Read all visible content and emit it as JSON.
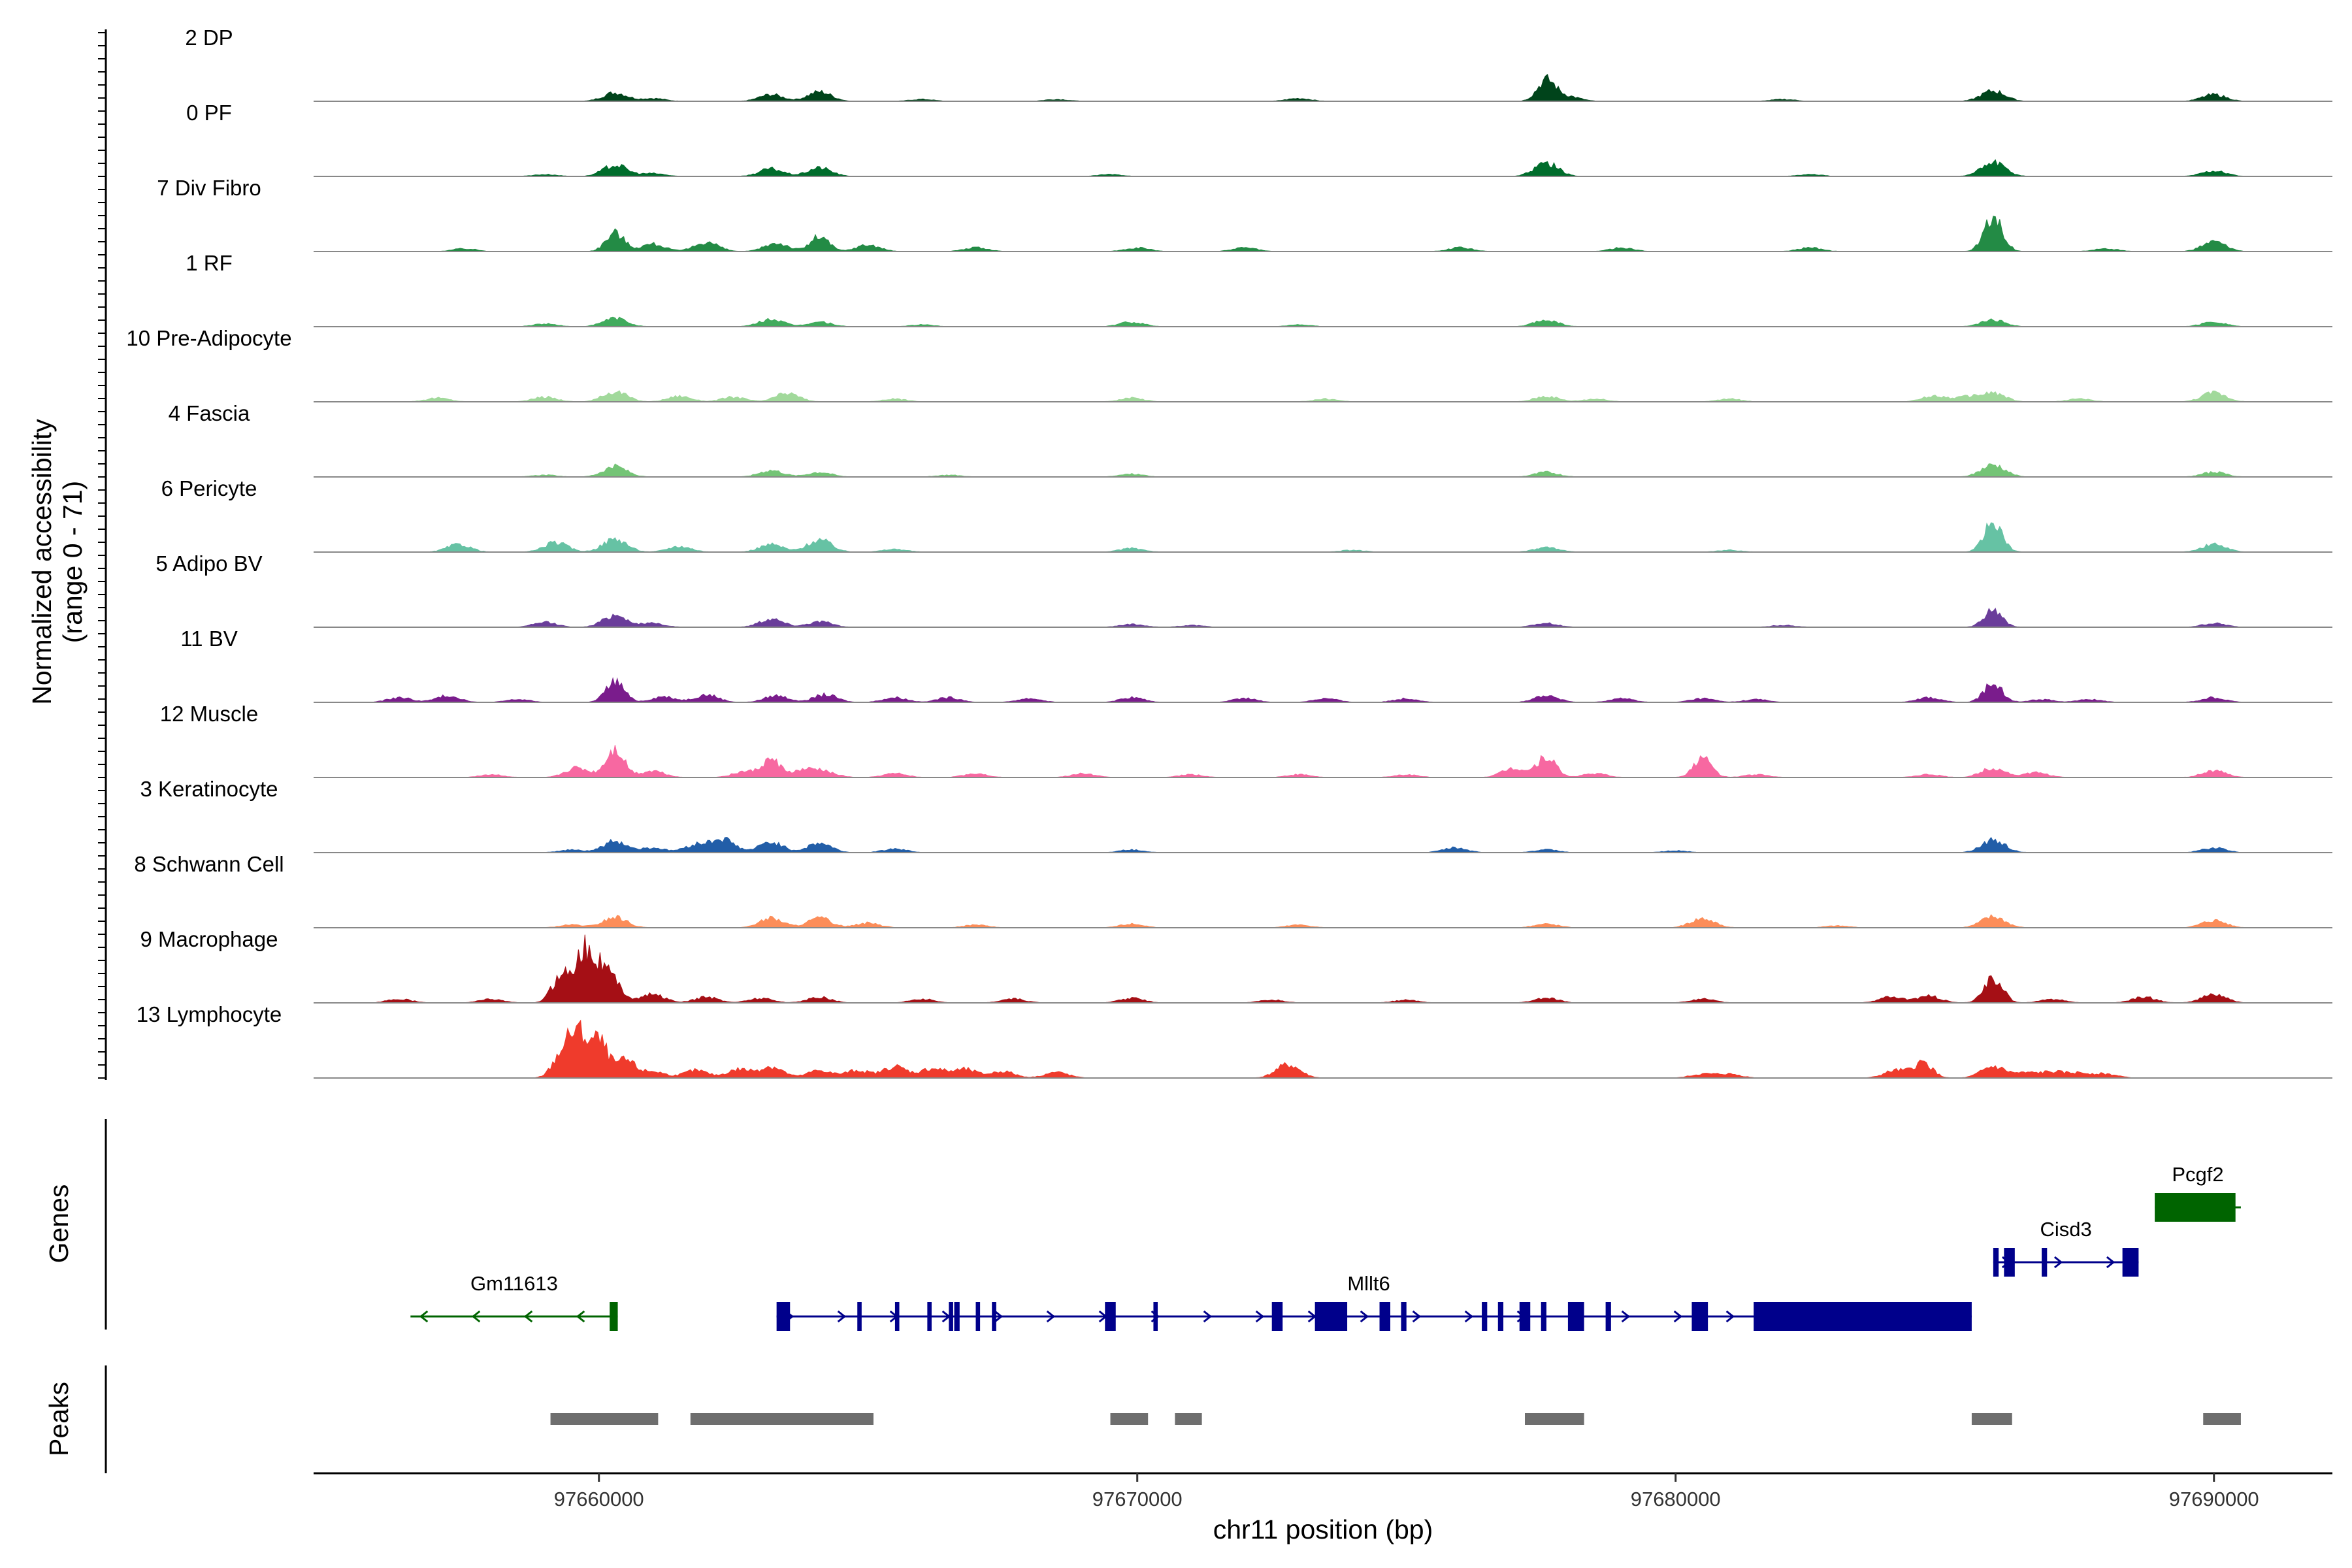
{
  "chart_data": {
    "type": "coverage",
    "y_axis_title_line1": "Normalized accessibility",
    "y_axis_title_line2": "(range 0 - 71)",
    "y_range": [
      0,
      71
    ],
    "x_axis_title": "chr11 position (bp)",
    "x_range": [
      97654700,
      97692200
    ],
    "x_ticks": [
      97660000,
      97670000,
      97680000,
      97690000
    ],
    "x_tick_labels": [
      "97660000",
      "97670000",
      "97680000",
      "97690000"
    ],
    "gene_track_title": "Genes",
    "peak_track_title": "Peaks",
    "tracks": [
      {
        "name": "2 DP",
        "color": "#00441b",
        "peaks": [
          [
            97660300,
            9
          ],
          [
            97663200,
            7
          ],
          [
            97664100,
            10
          ],
          [
            97677600,
            22
          ],
          [
            97678000,
            5
          ],
          [
            97685900,
            11
          ],
          [
            97690000,
            7
          ],
          [
            97661000,
            3
          ],
          [
            97668500,
            2
          ],
          [
            97673000,
            3
          ],
          [
            97682000,
            2
          ],
          [
            97666000,
            2
          ]
        ]
      },
      {
        "name": "0 PF",
        "color": "#006d2c",
        "peaks": [
          [
            97660300,
            12
          ],
          [
            97663200,
            8
          ],
          [
            97664100,
            9
          ],
          [
            97677600,
            14
          ],
          [
            97685900,
            15
          ],
          [
            97690000,
            6
          ],
          [
            97661000,
            3
          ],
          [
            97669500,
            2
          ],
          [
            97682500,
            2
          ],
          [
            97659000,
            2
          ]
        ]
      },
      {
        "name": "7 Div Fibro",
        "color": "#238b45",
        "peaks": [
          [
            97660300,
            20
          ],
          [
            97661000,
            8
          ],
          [
            97662000,
            10
          ],
          [
            97663300,
            9
          ],
          [
            97664100,
            16
          ],
          [
            97665000,
            7
          ],
          [
            97667000,
            4
          ],
          [
            97670000,
            4
          ],
          [
            97672000,
            4
          ],
          [
            97676000,
            4
          ],
          [
            97679000,
            4
          ],
          [
            97682500,
            4
          ],
          [
            97685900,
            38
          ],
          [
            97690000,
            10
          ],
          [
            97657500,
            3
          ],
          [
            97688000,
            3
          ]
        ]
      },
      {
        "name": "1 RF",
        "color": "#41ab5d",
        "peaks": [
          [
            97660300,
            9
          ],
          [
            97663200,
            8
          ],
          [
            97664100,
            5
          ],
          [
            97659000,
            3
          ],
          [
            97669900,
            5
          ],
          [
            97677600,
            7
          ],
          [
            97685900,
            7
          ],
          [
            97690000,
            5
          ],
          [
            97666000,
            2
          ],
          [
            97673000,
            2
          ]
        ]
      },
      {
        "name": "10 Pre-Adipocyte",
        "color": "#a1d99b",
        "peaks": [
          [
            97657000,
            4
          ],
          [
            97659000,
            5
          ],
          [
            97660300,
            11
          ],
          [
            97661500,
            6
          ],
          [
            97663500,
            9
          ],
          [
            97662500,
            5
          ],
          [
            97665500,
            3
          ],
          [
            97669900,
            4
          ],
          [
            97673500,
            3
          ],
          [
            97677600,
            6
          ],
          [
            97678500,
            3
          ],
          [
            97681000,
            3
          ],
          [
            97684800,
            6
          ],
          [
            97685400,
            5
          ],
          [
            97685900,
            9
          ],
          [
            97690000,
            10
          ],
          [
            97687500,
            3
          ]
        ]
      },
      {
        "name": "4 Fascia",
        "color": "#74c476",
        "peaks": [
          [
            97660300,
            11
          ],
          [
            97663200,
            7
          ],
          [
            97664100,
            5
          ],
          [
            97659000,
            2
          ],
          [
            97669900,
            3
          ],
          [
            97677600,
            5
          ],
          [
            97685900,
            13
          ],
          [
            97690000,
            5
          ],
          [
            97666500,
            2
          ]
        ]
      },
      {
        "name": "6 Pericyte",
        "color": "#66c2a4",
        "peaks": [
          [
            97657400,
            8
          ],
          [
            97659200,
            10
          ],
          [
            97660300,
            14
          ],
          [
            97661500,
            6
          ],
          [
            97663200,
            8
          ],
          [
            97664100,
            13
          ],
          [
            97665500,
            3
          ],
          [
            97669900,
            4
          ],
          [
            97677600,
            5
          ],
          [
            97685900,
            32
          ],
          [
            97690000,
            8
          ],
          [
            97674000,
            2
          ],
          [
            97681000,
            2
          ]
        ]
      },
      {
        "name": "5 Adipo BV",
        "color": "#6a3d9a",
        "peaks": [
          [
            97659000,
            5
          ],
          [
            97660300,
            13
          ],
          [
            97661000,
            4
          ],
          [
            97663200,
            9
          ],
          [
            97664100,
            6
          ],
          [
            97669900,
            3
          ],
          [
            97677600,
            4
          ],
          [
            97685900,
            18
          ],
          [
            97690000,
            4
          ],
          [
            97671000,
            2
          ],
          [
            97682000,
            2
          ]
        ]
      },
      {
        "name": "11 BV",
        "color": "#7a1c8c",
        "peaks": [
          [
            97656300,
            5
          ],
          [
            97657200,
            7
          ],
          [
            97658500,
            3
          ],
          [
            97660300,
            22
          ],
          [
            97661200,
            6
          ],
          [
            97662000,
            8
          ],
          [
            97663300,
            7
          ],
          [
            97664200,
            8
          ],
          [
            97665500,
            5
          ],
          [
            97666500,
            5
          ],
          [
            97668000,
            4
          ],
          [
            97669900,
            5
          ],
          [
            97672000,
            4
          ],
          [
            97673500,
            4
          ],
          [
            97675000,
            4
          ],
          [
            97677600,
            7
          ],
          [
            97679000,
            4
          ],
          [
            97680500,
            4
          ],
          [
            97681500,
            3
          ],
          [
            97684700,
            5
          ],
          [
            97685900,
            20
          ],
          [
            97686800,
            3
          ],
          [
            97687700,
            3
          ],
          [
            97690000,
            5
          ]
        ]
      },
      {
        "name": "12 Muscle",
        "color": "#f768a1",
        "peaks": [
          [
            97658000,
            3
          ],
          [
            97659600,
            10
          ],
          [
            97660300,
            30
          ],
          [
            97661000,
            7
          ],
          [
            97662700,
            6
          ],
          [
            97663200,
            18
          ],
          [
            97663800,
            7
          ],
          [
            97664200,
            6
          ],
          [
            97665500,
            4
          ],
          [
            97667000,
            4
          ],
          [
            97669000,
            4
          ],
          [
            97671000,
            3
          ],
          [
            97673000,
            3
          ],
          [
            97675000,
            3
          ],
          [
            97677000,
            10
          ],
          [
            97677600,
            22
          ],
          [
            97678500,
            4
          ],
          [
            97680500,
            20
          ],
          [
            97681500,
            3
          ],
          [
            97684700,
            3
          ],
          [
            97685900,
            10
          ],
          [
            97686700,
            5
          ],
          [
            97690000,
            7
          ]
        ]
      },
      {
        "name": "3 Keratinocyte",
        "color": "#225ea8",
        "peaks": [
          [
            97659500,
            3
          ],
          [
            97660300,
            12
          ],
          [
            97661000,
            5
          ],
          [
            97661800,
            8
          ],
          [
            97662300,
            14
          ],
          [
            97663200,
            11
          ],
          [
            97664100,
            10
          ],
          [
            97665500,
            4
          ],
          [
            97669900,
            3
          ],
          [
            97675900,
            5
          ],
          [
            97677600,
            3
          ],
          [
            97685900,
            13
          ],
          [
            97690000,
            5
          ],
          [
            97680000,
            2
          ]
        ]
      },
      {
        "name": "8 Schwann Cell",
        "color": "#fc8d59",
        "peaks": [
          [
            97659500,
            3
          ],
          [
            97660300,
            11
          ],
          [
            97663200,
            10
          ],
          [
            97664100,
            10
          ],
          [
            97665000,
            5
          ],
          [
            97667000,
            3
          ],
          [
            97669900,
            4
          ],
          [
            97673000,
            3
          ],
          [
            97677600,
            4
          ],
          [
            97680500,
            10
          ],
          [
            97685900,
            12
          ],
          [
            97690000,
            8
          ],
          [
            97683000,
            2
          ]
        ]
      },
      {
        "name": "9 Macrophage",
        "color": "#a50f15",
        "peaks": [
          [
            97656300,
            4
          ],
          [
            97658000,
            4
          ],
          [
            97659300,
            28
          ],
          [
            97659700,
            48
          ],
          [
            97660000,
            33
          ],
          [
            97660300,
            18
          ],
          [
            97661000,
            9
          ],
          [
            97662000,
            6
          ],
          [
            97663000,
            5
          ],
          [
            97664100,
            6
          ],
          [
            97666000,
            4
          ],
          [
            97667700,
            4
          ],
          [
            97669900,
            5
          ],
          [
            97672500,
            3
          ],
          [
            97675000,
            3
          ],
          [
            97677600,
            5
          ],
          [
            97680500,
            4
          ],
          [
            97684000,
            6
          ],
          [
            97684700,
            7
          ],
          [
            97685900,
            27
          ],
          [
            97687000,
            4
          ],
          [
            97688700,
            6
          ],
          [
            97690000,
            9
          ]
        ]
      },
      {
        "name": "13 Lymphocyte",
        "color": "#ef3b2c",
        "peaks": [
          [
            97659300,
            22
          ],
          [
            97659600,
            44
          ],
          [
            97660000,
            38
          ],
          [
            97660500,
            18
          ],
          [
            97661000,
            7
          ],
          [
            97661800,
            8
          ],
          [
            97662600,
            9
          ],
          [
            97663200,
            12
          ],
          [
            97664100,
            8
          ],
          [
            97664800,
            8
          ],
          [
            97665500,
            12
          ],
          [
            97666200,
            10
          ],
          [
            97666800,
            9
          ],
          [
            97667500,
            7
          ],
          [
            97668500,
            6
          ],
          [
            97672800,
            14
          ],
          [
            97680500,
            4
          ],
          [
            97681000,
            4
          ],
          [
            97684100,
            8
          ],
          [
            97684600,
            16
          ],
          [
            97685900,
            12
          ],
          [
            97686500,
            5
          ],
          [
            97687000,
            6
          ],
          [
            97687500,
            5
          ],
          [
            97688000,
            4
          ]
        ]
      }
    ],
    "genes": [
      {
        "name": "Gm11613",
        "strand": "-",
        "color": "#006400",
        "start": 97656500,
        "end": 97660350,
        "exons": [
          [
            97660200,
            97660350
          ]
        ],
        "row": 2
      },
      {
        "name": "Mllt6",
        "strand": "+",
        "color": "#00008b",
        "start": 97663300,
        "end": 97685500,
        "exons": [
          [
            97663300,
            97663550
          ],
          [
            97664800,
            97664880
          ],
          [
            97665500,
            97665580
          ],
          [
            97666100,
            97666180
          ],
          [
            97666500,
            97666580
          ],
          [
            97666600,
            97666700
          ],
          [
            97667000,
            97667080
          ],
          [
            97667300,
            97667380
          ],
          [
            97669400,
            97669600
          ],
          [
            97670300,
            97670380
          ],
          [
            97672500,
            97672700
          ],
          [
            97673300,
            97673900
          ],
          [
            97674500,
            97674700
          ],
          [
            97674900,
            97675000
          ],
          [
            97676400,
            97676500
          ],
          [
            97676700,
            97676800
          ],
          [
            97677100,
            97677300
          ],
          [
            97677500,
            97677600
          ],
          [
            97678000,
            97678300
          ],
          [
            97678700,
            97678800
          ],
          [
            97680300,
            97680600
          ],
          [
            97681450,
            97685500
          ]
        ],
        "row": 2
      },
      {
        "name": "Cisd3",
        "strand": "+",
        "color": "#00008b",
        "start": 97685900,
        "end": 97688600,
        "exons": [
          [
            97685900,
            97686000
          ],
          [
            97686100,
            97686300
          ],
          [
            97686800,
            97686900
          ],
          [
            97688300,
            97688600
          ]
        ],
        "row": 1
      },
      {
        "name": "Pcgf2",
        "strand": "+",
        "color": "#006400",
        "start": 97688900,
        "end": 97690500,
        "exons": [
          [
            97688900,
            97690400
          ]
        ],
        "row": 0
      }
    ],
    "peak_regions": [
      [
        97659100,
        97661100
      ],
      [
        97661700,
        97665100
      ],
      [
        97669500,
        97670200
      ],
      [
        97670700,
        97671200
      ],
      [
        97677200,
        97678300
      ],
      [
        97685500,
        97686250
      ],
      [
        97689800,
        97690500
      ]
    ]
  }
}
